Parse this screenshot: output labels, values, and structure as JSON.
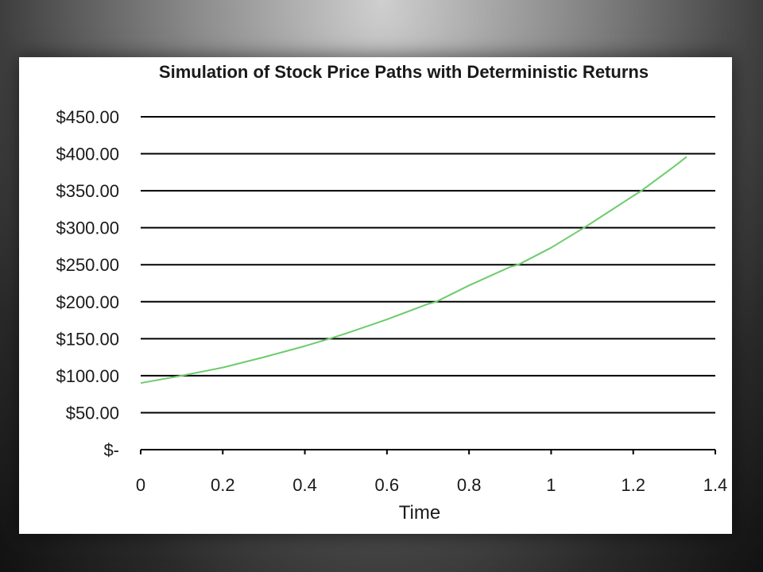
{
  "colors": {
    "series": "#6dcc6d",
    "grid": "#000000",
    "background": "#ffffff"
  },
  "chart_data": {
    "type": "line",
    "title": "Simulation of Stock Price Paths with Deterministic Returns",
    "xlabel": "Time",
    "ylabel": "",
    "xlim": [
      0,
      1.4
    ],
    "ylim": [
      0,
      450
    ],
    "grid": "horizontal",
    "xticks": [
      0,
      0.2,
      0.4,
      0.6,
      0.8,
      1,
      1.2,
      1.4
    ],
    "xtick_labels": [
      "0",
      "0.2",
      "0.4",
      "0.6",
      "0.8",
      "1",
      "1.2",
      "1.4"
    ],
    "yticks": [
      0,
      50,
      100,
      150,
      200,
      250,
      300,
      350,
      400,
      450
    ],
    "ytick_labels": [
      "$-",
      "$50.00",
      "$100.00",
      "$150.00",
      "$200.00",
      "$250.00",
      "$300.00",
      "$350.00",
      "$400.00",
      "$450.00"
    ],
    "series": [
      {
        "x": [
          0,
          0.1,
          0.2,
          0.3,
          0.4,
          0.46,
          0.5,
          0.6,
          0.7,
          0.72,
          0.8,
          0.9,
          0.92,
          1.0,
          1.08,
          1.1,
          1.2,
          1.22,
          1.3,
          1.33
        ],
        "values": [
          90,
          100,
          111,
          125,
          140,
          150,
          157,
          176,
          197,
          200,
          222,
          247,
          250,
          273,
          300,
          307,
          343,
          350,
          383,
          396
        ]
      }
    ]
  }
}
